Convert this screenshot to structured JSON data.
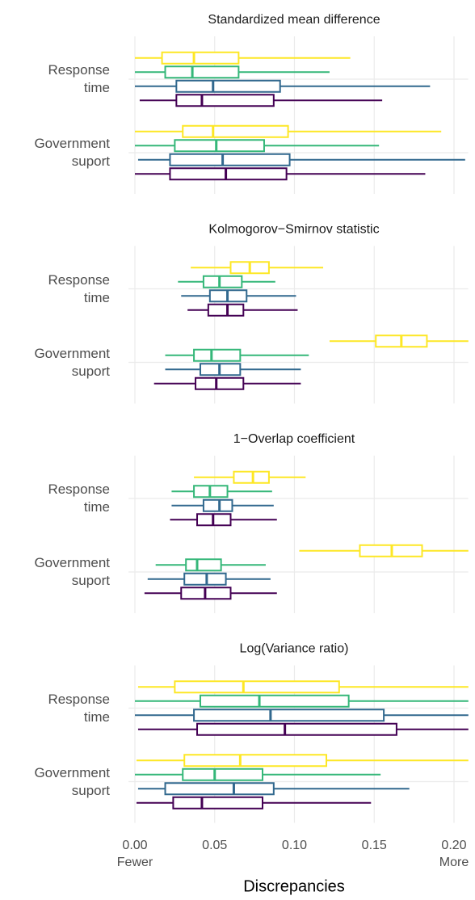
{
  "chart_data": {
    "type": "box",
    "xlabel": "Discrepancies",
    "xlim": [
      -0.004,
      0.209
    ],
    "xticks": [
      {
        "value": 0,
        "label": "0.00"
      },
      0.05,
      {
        "value": 0.1,
        "label": "0.10"
      },
      0.15,
      {
        "value": 0.2,
        "label": "0.20"
      }
    ],
    "x_annotations": [
      {
        "value": 0,
        "text": "Fewer"
      },
      {
        "value": 0.2,
        "text": "More"
      }
    ],
    "grid": true,
    "categories": [
      "Response time",
      "Government suport"
    ],
    "panels": [
      {
        "title": "Standardized mean difference",
        "series": [
          {
            "color": "#fde725",
            "boxes": [
              {
                "min": 0,
                "q1": 0.017,
                "median": 0.037,
                "q3": 0.065,
                "max": 0.135
              },
              {
                "min": 0,
                "q1": 0.03,
                "median": 0.049,
                "q3": 0.096,
                "max": 0.192
              }
            ]
          },
          {
            "color": "#35b779",
            "boxes": [
              {
                "min": 0,
                "q1": 0.019,
                "median": 0.036,
                "q3": 0.065,
                "max": 0.122
              },
              {
                "min": 0,
                "q1": 0.025,
                "median": 0.051,
                "q3": 0.081,
                "max": 0.153
              }
            ]
          },
          {
            "color": "#31688e",
            "boxes": [
              {
                "min": 0,
                "q1": 0.026,
                "median": 0.049,
                "q3": 0.091,
                "max": 0.185
              },
              {
                "min": 0.002,
                "q1": 0.022,
                "median": 0.055,
                "q3": 0.097,
                "max": 0.207
              }
            ]
          },
          {
            "color": "#440154",
            "boxes": [
              {
                "min": 0.003,
                "q1": 0.026,
                "median": 0.042,
                "q3": 0.087,
                "max": 0.155
              },
              {
                "min": 0,
                "q1": 0.022,
                "median": 0.057,
                "q3": 0.095,
                "max": 0.182
              }
            ]
          }
        ]
      },
      {
        "title": "Kolmogorov−Smirnov statistic",
        "series": [
          {
            "color": "#fde725",
            "boxes": [
              {
                "min": 0.035,
                "q1": 0.06,
                "median": 0.072,
                "q3": 0.084,
                "max": 0.118
              },
              {
                "min": 0.122,
                "q1": 0.151,
                "median": 0.167,
                "q3": 0.183,
                "max": 0.215
              }
            ]
          },
          {
            "color": "#35b779",
            "boxes": [
              {
                "min": 0.027,
                "q1": 0.043,
                "median": 0.053,
                "q3": 0.067,
                "max": 0.088
              },
              {
                "min": 0.019,
                "q1": 0.037,
                "median": 0.048,
                "q3": 0.066,
                "max": 0.109
              }
            ]
          },
          {
            "color": "#31688e",
            "boxes": [
              {
                "min": 0.029,
                "q1": 0.047,
                "median": 0.058,
                "q3": 0.07,
                "max": 0.101
              },
              {
                "min": 0.019,
                "q1": 0.041,
                "median": 0.053,
                "q3": 0.066,
                "max": 0.104
              }
            ]
          },
          {
            "color": "#440154",
            "boxes": [
              {
                "min": 0.033,
                "q1": 0.046,
                "median": 0.058,
                "q3": 0.068,
                "max": 0.102
              },
              {
                "min": 0.012,
                "q1": 0.038,
                "median": 0.051,
                "q3": 0.068,
                "max": 0.104
              }
            ]
          }
        ]
      },
      {
        "title": "1−Overlap coefficient",
        "series": [
          {
            "color": "#fde725",
            "boxes": [
              {
                "min": 0.037,
                "q1": 0.062,
                "median": 0.074,
                "q3": 0.084,
                "max": 0.107
              },
              {
                "min": 0.103,
                "q1": 0.141,
                "median": 0.161,
                "q3": 0.18,
                "max": 0.215
              }
            ]
          },
          {
            "color": "#35b779",
            "boxes": [
              {
                "min": 0.023,
                "q1": 0.037,
                "median": 0.047,
                "q3": 0.058,
                "max": 0.086
              },
              {
                "min": 0.013,
                "q1": 0.032,
                "median": 0.039,
                "q3": 0.054,
                "max": 0.082
              }
            ]
          },
          {
            "color": "#31688e",
            "boxes": [
              {
                "min": 0.023,
                "q1": 0.043,
                "median": 0.053,
                "q3": 0.061,
                "max": 0.087
              },
              {
                "min": 0.008,
                "q1": 0.031,
                "median": 0.045,
                "q3": 0.057,
                "max": 0.085
              }
            ]
          },
          {
            "color": "#440154",
            "boxes": [
              {
                "min": 0.022,
                "q1": 0.039,
                "median": 0.049,
                "q3": 0.06,
                "max": 0.089
              },
              {
                "min": 0.006,
                "q1": 0.029,
                "median": 0.044,
                "q3": 0.06,
                "max": 0.089
              }
            ]
          }
        ]
      },
      {
        "title": "Log(Variance ratio)",
        "series": [
          {
            "color": "#fde725",
            "boxes": [
              {
                "min": 0.002,
                "q1": 0.025,
                "median": 0.068,
                "q3": 0.128,
                "max": 0.215
              },
              {
                "min": 0.001,
                "q1": 0.031,
                "median": 0.066,
                "q3": 0.12,
                "max": 0.215
              }
            ]
          },
          {
            "color": "#35b779",
            "boxes": [
              {
                "min": 0,
                "q1": 0.041,
                "median": 0.078,
                "q3": 0.134,
                "max": 0.215
              },
              {
                "min": 0,
                "q1": 0.03,
                "median": 0.05,
                "q3": 0.08,
                "max": 0.154
              }
            ]
          },
          {
            "color": "#31688e",
            "boxes": [
              {
                "min": 0,
                "q1": 0.037,
                "median": 0.085,
                "q3": 0.156,
                "max": 0.215
              },
              {
                "min": 0.002,
                "q1": 0.019,
                "median": 0.062,
                "q3": 0.087,
                "max": 0.172
              }
            ]
          },
          {
            "color": "#440154",
            "boxes": [
              {
                "min": 0.002,
                "q1": 0.039,
                "median": 0.094,
                "q3": 0.164,
                "max": 0.215
              },
              {
                "min": 0.001,
                "q1": 0.024,
                "median": 0.042,
                "q3": 0.08,
                "max": 0.148
              }
            ]
          }
        ]
      }
    ]
  }
}
